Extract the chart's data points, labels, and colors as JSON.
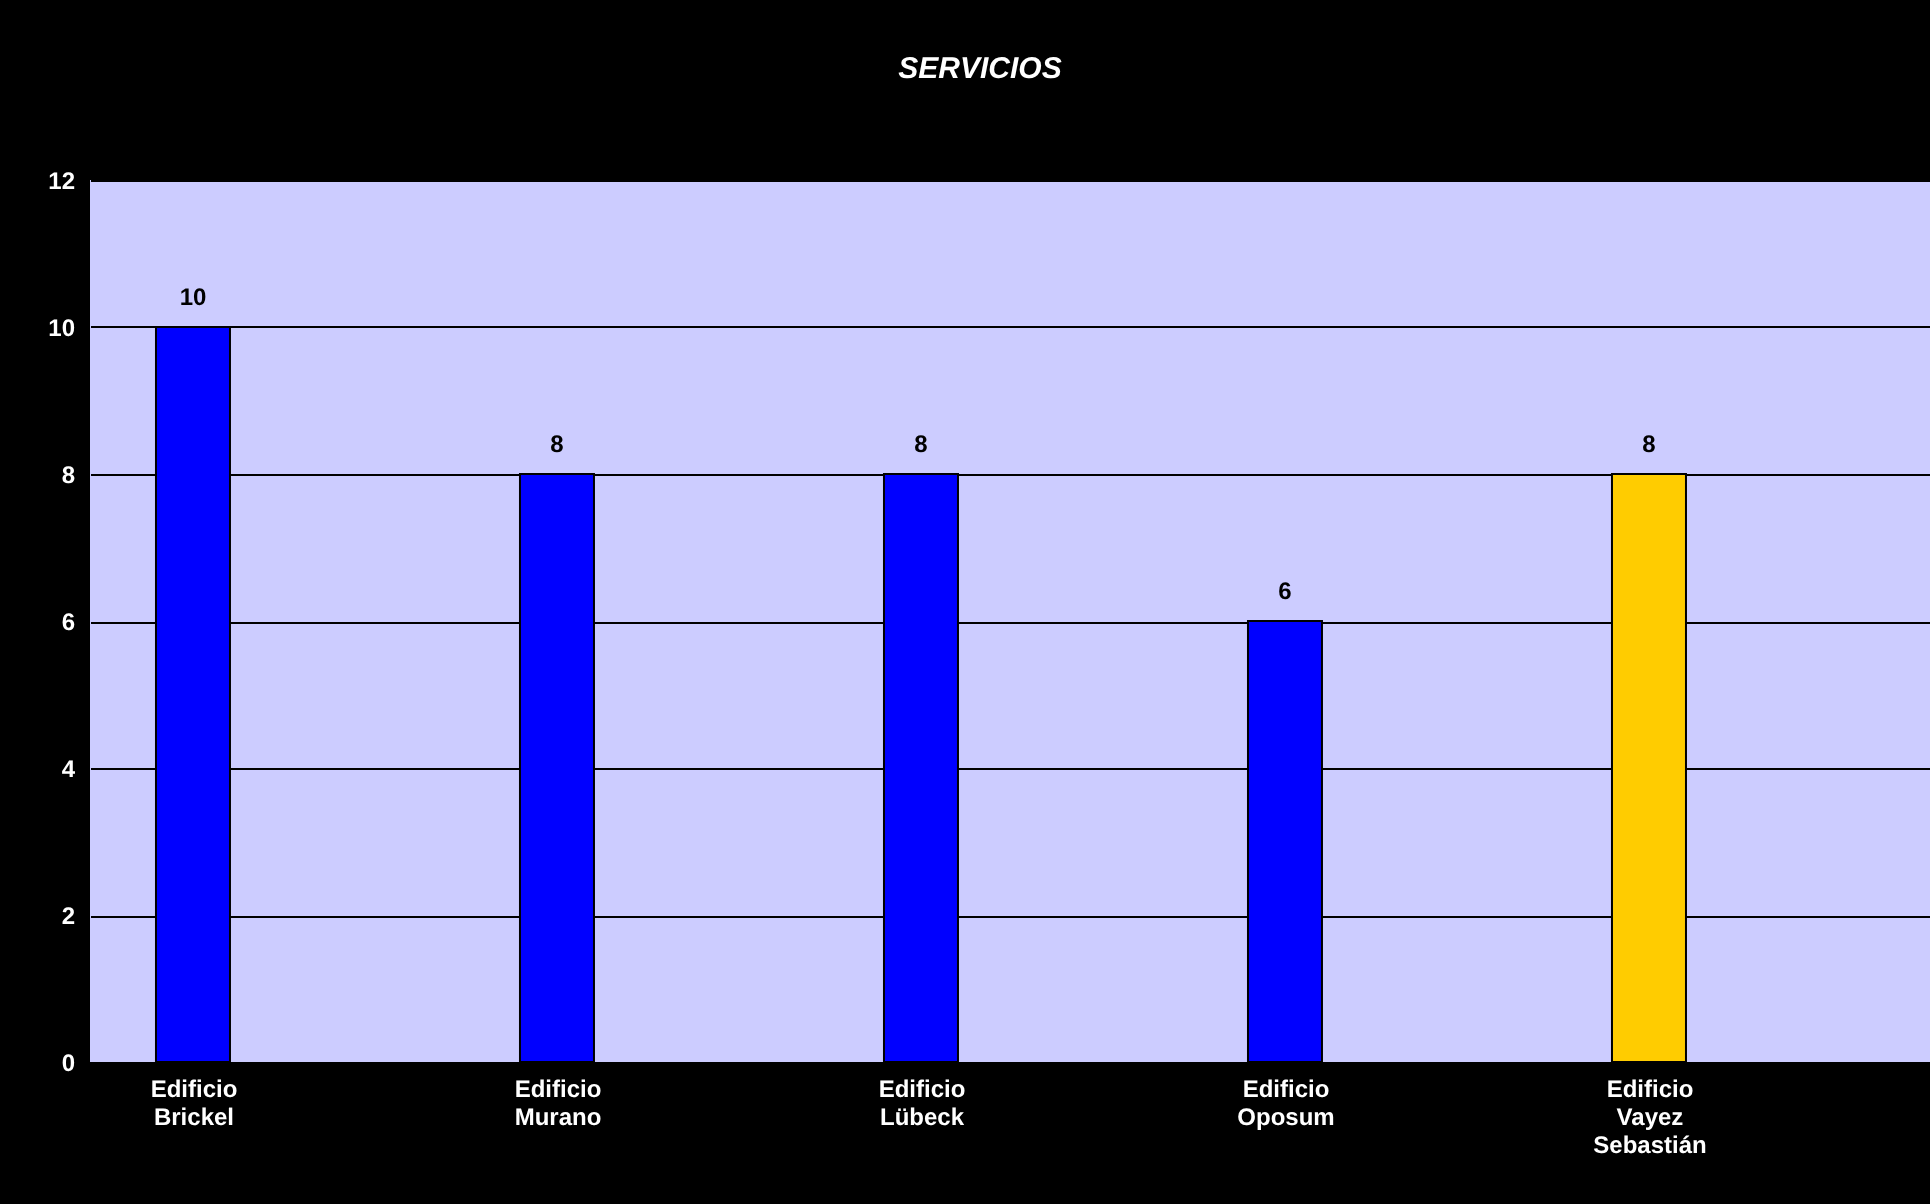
{
  "chart_data": {
    "type": "bar",
    "title": "SERVICIOS",
    "categories": [
      "Edificio Brickel",
      "Edificio Murano",
      "Edificio Lübeck",
      "Edificio Oposum",
      "Edificio Vayez Sebastián"
    ],
    "values": [
      10,
      8,
      8,
      6,
      8
    ],
    "colors": [
      "#0000ff",
      "#0000ff",
      "#0000ff",
      "#0000ff",
      "#ffcc00"
    ],
    "ylim": [
      0,
      12
    ],
    "yticks": [
      0,
      2,
      4,
      6,
      8,
      10,
      12
    ],
    "grid": "y",
    "data_labels": true
  }
}
